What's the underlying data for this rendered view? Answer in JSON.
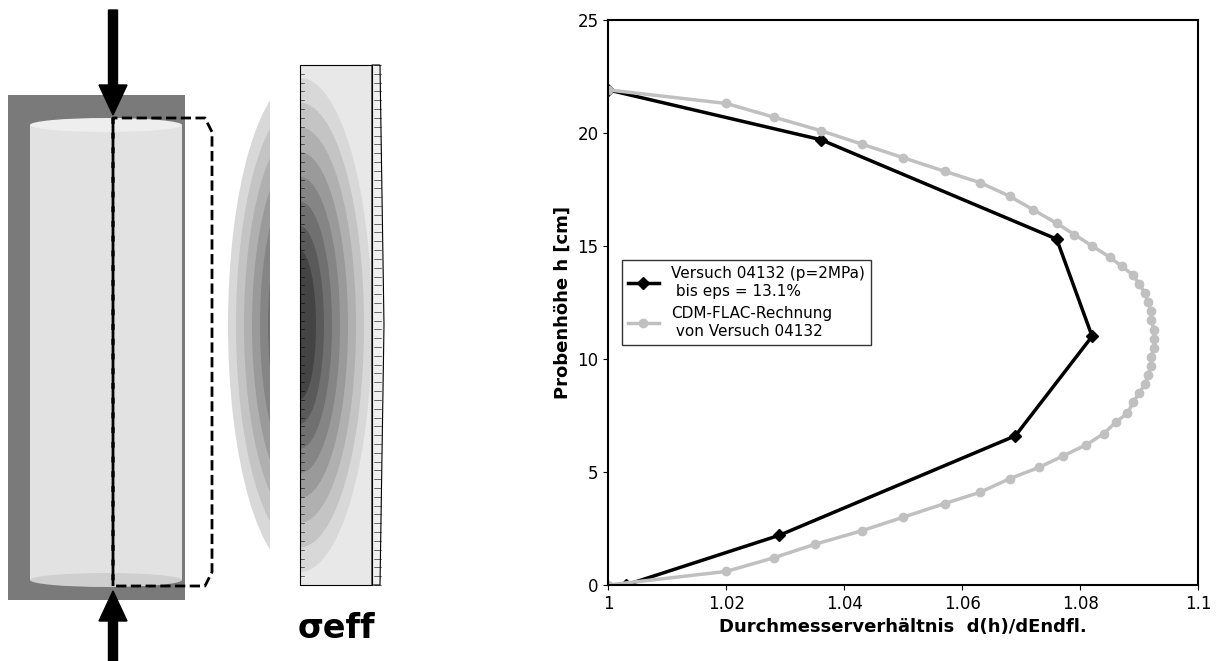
{
  "chart_data": {
    "type": "line",
    "xlabel": "Durchmesserverhältnis  d(h)/dEndfl.",
    "ylabel": "Probenhöhe h [cm]",
    "xlim": [
      1,
      1.1
    ],
    "xticks": [
      1,
      1.02,
      1.04,
      1.06,
      1.08,
      1.1
    ],
    "ylim": [
      0,
      25
    ],
    "yticks": [
      0,
      5,
      10,
      15,
      20,
      25
    ],
    "legend": "center left",
    "series": [
      {
        "name": "Versuch 04132 (p=2MPa)\n bis eps = 13.1%",
        "color": "#000000",
        "marker": "D",
        "line_style": "solid",
        "x": [
          1.003,
          1.029,
          1.069,
          1.082,
          1.076,
          1.036,
          1.0
        ],
        "values": [
          0,
          2.2,
          6.6,
          11.0,
          15.3,
          19.7,
          21.9
        ]
      },
      {
        "name": "CDM-FLAC-Rechnung\n von Versuch 04132",
        "color": "#c0c0c0",
        "marker": "o",
        "line_style": "solid",
        "x": [
          1.0,
          1.02,
          1.028,
          1.035,
          1.043,
          1.05,
          1.057,
          1.063,
          1.068,
          1.073,
          1.077,
          1.081,
          1.084,
          1.086,
          1.088,
          1.089,
          1.09,
          1.091,
          1.0915,
          1.092,
          1.092,
          1.0925,
          1.0925,
          1.0925,
          1.092,
          1.092,
          1.0915,
          1.091,
          1.09,
          1.089,
          1.087,
          1.085,
          1.082,
          1.079,
          1.076,
          1.072,
          1.068,
          1.063,
          1.057,
          1.05,
          1.043,
          1.036,
          1.028,
          1.02,
          1.0
        ],
        "values": [
          0,
          0.6,
          1.2,
          1.8,
          2.4,
          3.0,
          3.6,
          4.1,
          4.7,
          5.2,
          5.7,
          6.2,
          6.7,
          7.2,
          7.6,
          8.1,
          8.5,
          8.9,
          9.3,
          9.7,
          10.1,
          10.5,
          10.9,
          11.3,
          11.7,
          12.1,
          12.5,
          12.9,
          13.3,
          13.7,
          14.1,
          14.5,
          15.0,
          15.5,
          16.0,
          16.6,
          17.2,
          17.8,
          18.3,
          18.9,
          19.5,
          20.1,
          20.7,
          21.3,
          21.9
        ]
      }
    ]
  },
  "panels": {
    "contour_label": "σeff"
  }
}
